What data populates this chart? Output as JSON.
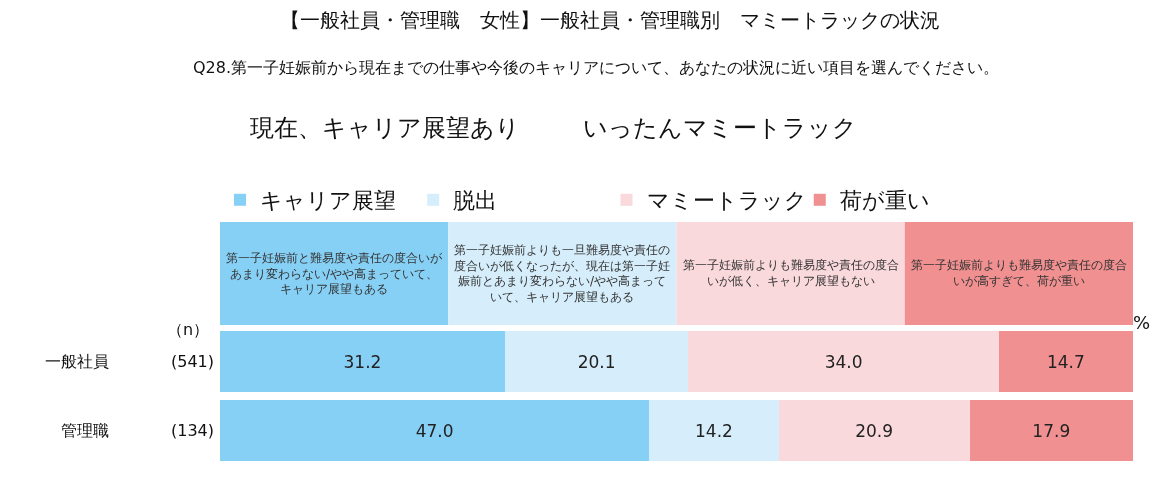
{
  "chart_data": {
    "type": "bar",
    "orientation": "horizontal",
    "stacked": true,
    "title": "【一般社員・管理職　女性】一般社員・管理職別　マミートラックの状況",
    "subtitle": "Q28.第一子妊娠前から現在までの仕事や今後のキャリアについて、あなたの状況に近い項目を選んでください。",
    "categories": [
      "一般社員",
      "管理職"
    ],
    "series": [
      {
        "name": "キャリア展望",
        "color": "#87d0f5",
        "values": [
          31.2,
          47.0
        ],
        "value_labels": [
          "31.2",
          "47.0"
        ]
      },
      {
        "name": "脱出",
        "color": "#d6eefb",
        "values": [
          20.1,
          14.2
        ],
        "value_labels": [
          "20.1",
          "14.2"
        ]
      },
      {
        "name": "マミートラック",
        "color": "#fad9dc",
        "values": [
          34.0,
          20.9
        ],
        "value_labels": [
          "34.0",
          "20.9"
        ]
      },
      {
        "name": "荷が重い",
        "color": "#f19091",
        "values": [
          14.7,
          17.9
        ],
        "value_labels": [
          "14.7",
          "17.9"
        ]
      }
    ],
    "annotations": [
      "現在、キャリア展望あり",
      "いったんマミートラック",
      "第一子妊娠前と難易度や責任の度合いがあまり変わらない/やや高まっていて、キャリア展望もある",
      "第一子妊娠前よりも一旦難易度や責任の度合いが低くなったが、現在は第一子妊娠前とあまり変わらない/やや高まっていて、キャリア展望もある",
      "第一子妊娠前よりも難易度や責任の度合いが低く、キャリア展望もない",
      "第一子妊娠前よりも難易度や責任の度合いが高すぎて、荷が重い",
      "（n）",
      "(541)",
      "(134)",
      "%"
    ],
    "xlim": [
      0,
      100
    ],
    "tick_labels": "y",
    "legend": "top"
  }
}
